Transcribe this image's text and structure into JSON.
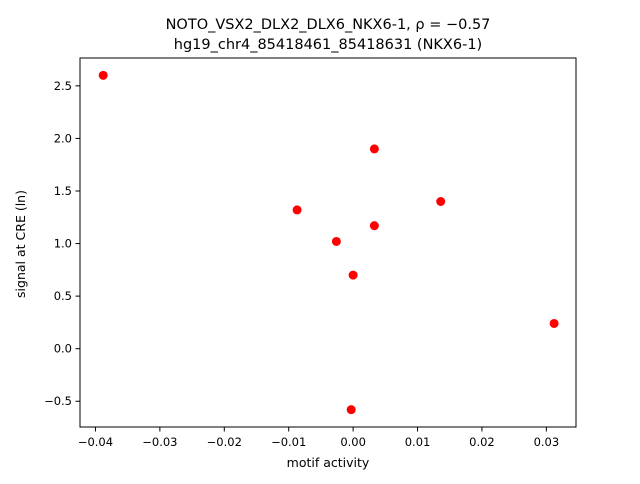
{
  "chart_data": {
    "type": "scatter",
    "title": "NOTO_VSX2_DLX2_DLX6_NKX6-1, ρ = −0.57",
    "subtitle": "hg19_chr4_85418461_85418631 (NKX6-1)",
    "xlabel": "motif activity",
    "ylabel": "signal at CRE (ln)",
    "xlim": [
      -0.0424,
      0.0346
    ],
    "ylim": [
      -0.745,
      2.765
    ],
    "xticks": [
      -0.04,
      -0.03,
      -0.02,
      -0.01,
      0.0,
      0.01,
      0.02,
      0.03
    ],
    "xtick_labels": [
      "−0.04",
      "−0.03",
      "−0.02",
      "−0.01",
      "0.00",
      "0.01",
      "0.02",
      "0.03"
    ],
    "yticks": [
      -0.5,
      0.0,
      0.5,
      1.0,
      1.5,
      2.0,
      2.5
    ],
    "ytick_labels": [
      "−0.5",
      "0.0",
      "0.5",
      "1.0",
      "1.5",
      "2.0",
      "2.5"
    ],
    "grid": false,
    "marker_color": "#ff0000",
    "points": [
      {
        "x": -0.0388,
        "y": 2.6
      },
      {
        "x": 0.0033,
        "y": 1.9
      },
      {
        "x": 0.0136,
        "y": 1.4
      },
      {
        "x": -0.0087,
        "y": 1.32
      },
      {
        "x": 0.0033,
        "y": 1.17
      },
      {
        "x": -0.0026,
        "y": 1.02
      },
      {
        "x": 0.0,
        "y": 0.7
      },
      {
        "x": 0.0312,
        "y": 0.24
      },
      {
        "x": -0.0003,
        "y": -0.58
      }
    ]
  }
}
